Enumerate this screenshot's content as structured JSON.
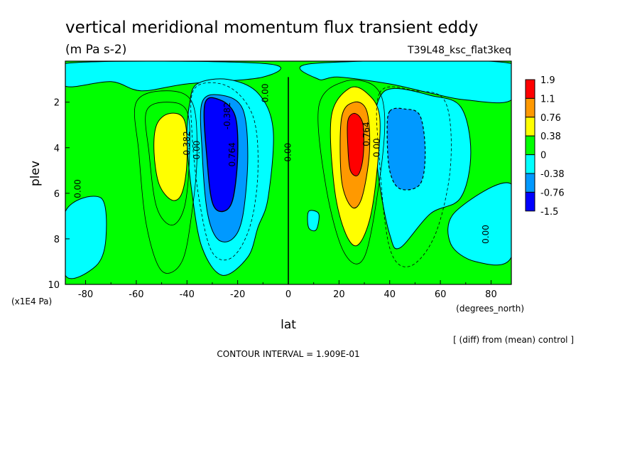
{
  "chart_data": {
    "type": "heatmap",
    "title": "vertical meridional momentum flux transient eddy",
    "units": "(m Pa s-2)",
    "run_label": "T39L48_ksc_flat3keq",
    "xlabel": "lat",
    "xunits": "(degrees_north)",
    "ylabel": "plev",
    "yunits": "(x1E4 Pa)",
    "xlim": [
      -88,
      88
    ],
    "ylim": [
      10,
      0.2
    ],
    "x_ticks": [
      -80,
      -60,
      -40,
      -20,
      0,
      20,
      40,
      60,
      80
    ],
    "y_ticks": [
      2,
      4,
      6,
      8,
      10
    ],
    "colorbar": {
      "levels": [
        "1.9",
        "1.1",
        "0.76",
        "0.38",
        "0",
        "-0.38",
        "-0.76",
        "-1.5"
      ],
      "colors": [
        "#ff0000",
        "#ff9900",
        "#ffff00",
        "#00ff00",
        "#00ffff",
        "#0099ff",
        "#0000ff"
      ]
    },
    "contour_labels": [
      {
        "text": "0.00",
        "lon": -82,
        "plev": 5.8
      },
      {
        "text": "0.382",
        "lon": -39,
        "plev": 3.8
      },
      {
        "text": "0.00",
        "lon": -35,
        "plev": 4.1
      },
      {
        "text": "-0.382",
        "lon": -23,
        "plev": 2.6
      },
      {
        "text": "0.764",
        "lon": -21,
        "plev": 4.3
      },
      {
        "text": "0.00",
        "lon": -8,
        "plev": 1.6
      },
      {
        "text": "0.00",
        "lon": 1,
        "plev": 4.2
      },
      {
        "text": "0.764",
        "lon": 32,
        "plev": 3.4
      },
      {
        "text": "0.00",
        "lon": 36,
        "plev": 4.0
      },
      {
        "text": "0.00",
        "lon": 79,
        "plev": 7.8
      }
    ],
    "anomalies": [
      {
        "lon": -45,
        "plev": 4.2,
        "value": 0.7
      },
      {
        "lon": -27,
        "plev": 4.4,
        "value": -1.6
      },
      {
        "lon": 26,
        "plev": 4.3,
        "value": 1.95
      },
      {
        "lon": 44,
        "plev": 4.0,
        "value": -0.95
      }
    ],
    "contour_interval_text": "CONTOUR INTERVAL = 1.909E-01",
    "note": "[ (diff) from (mean) control ]"
  }
}
